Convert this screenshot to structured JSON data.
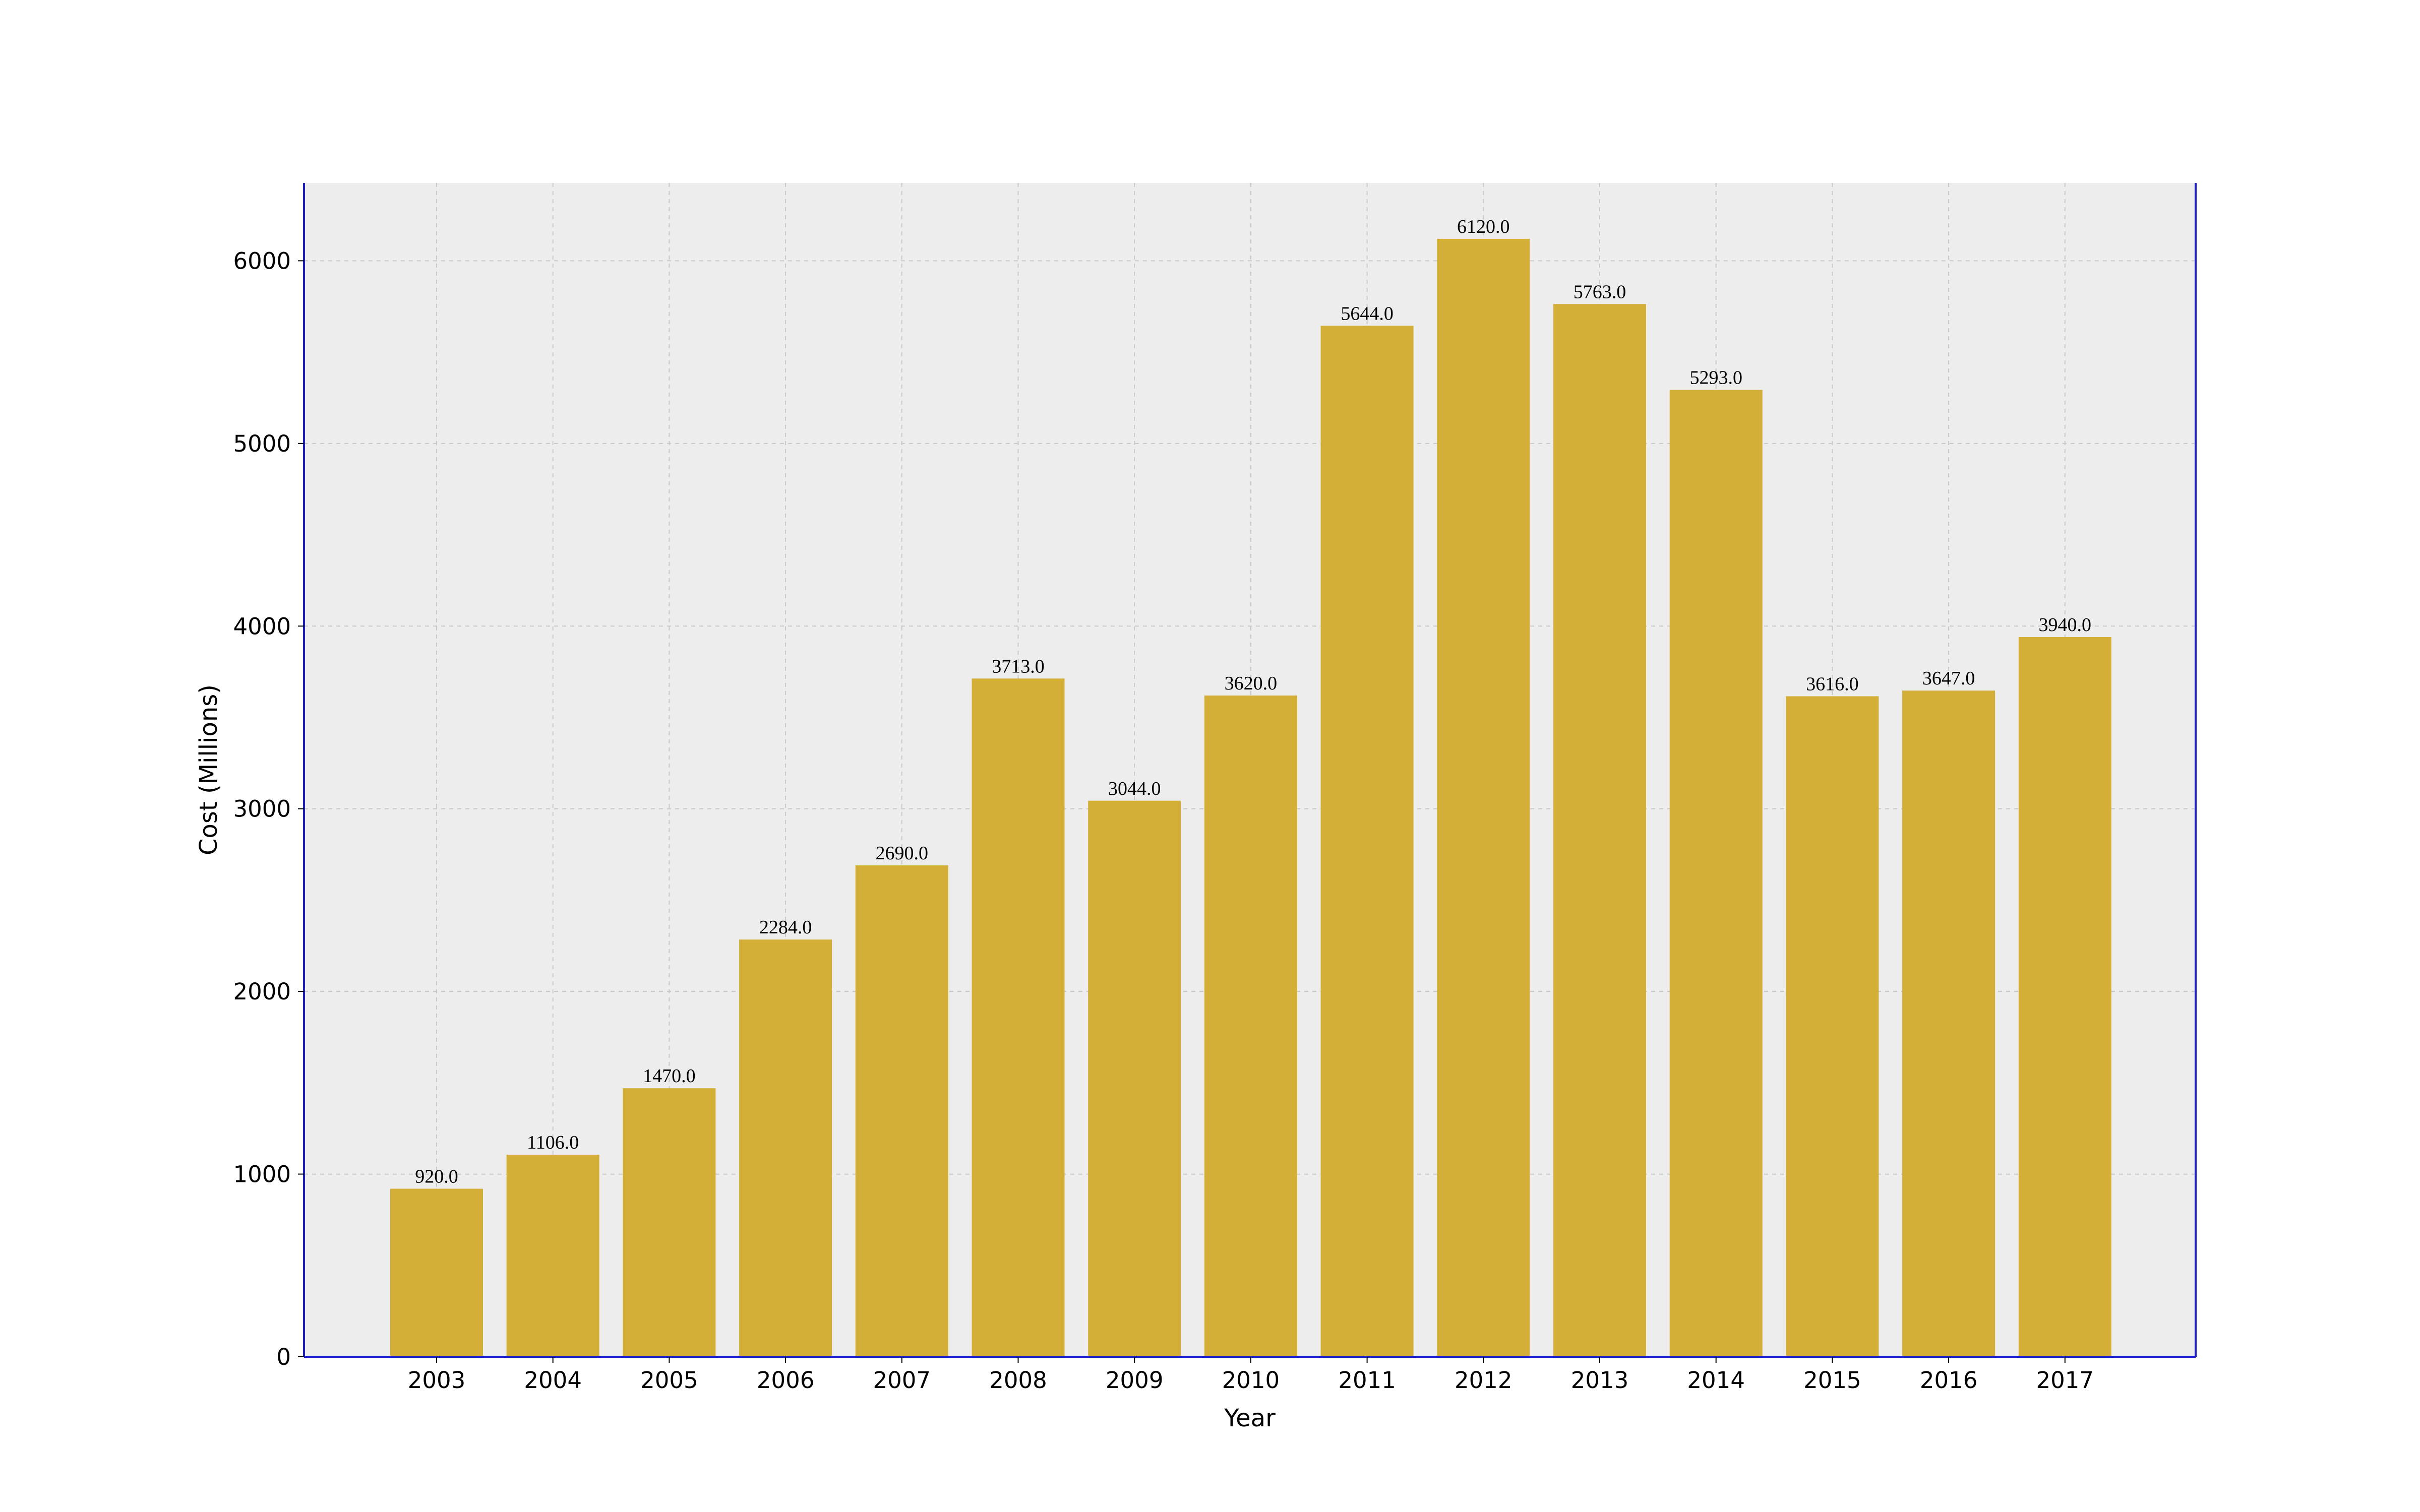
{
  "chart_data": {
    "type": "bar",
    "title": "",
    "xlabel": "Year",
    "ylabel": "Cost (Millions)",
    "categories": [
      "2003",
      "2004",
      "2005",
      "2006",
      "2007",
      "2008",
      "2009",
      "2010",
      "2011",
      "2012",
      "2013",
      "2014",
      "2015",
      "2016",
      "2017"
    ],
    "values": [
      920.0,
      1106.0,
      1470.0,
      2284.0,
      2690.0,
      3713.0,
      3044.0,
      3620.0,
      5644.0,
      6120.0,
      5763.0,
      5293.0,
      3616.0,
      3647.0,
      3940.0
    ],
    "value_labels": [
      "920.0",
      "1106.0",
      "1470.0",
      "2284.0",
      "2690.0",
      "3713.0",
      "3044.0",
      "3620.0",
      "5644.0",
      "6120.0",
      "5763.0",
      "5293.0",
      "3616.0",
      "3647.0",
      "3940.0"
    ],
    "yticks": [
      0,
      1000,
      2000,
      3000,
      4000,
      5000,
      6000
    ],
    "ylim": [
      0,
      6426
    ],
    "grid": true,
    "colors": {
      "bar": "#d4af37",
      "plot_background": "#ededed",
      "axis": "#1c1ccf",
      "grid": "#c8c8c8"
    }
  }
}
